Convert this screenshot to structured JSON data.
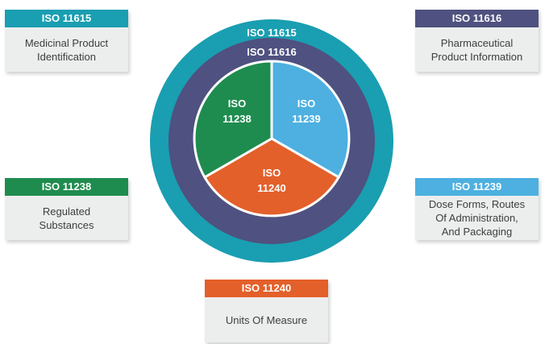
{
  "colors": {
    "outer_ring": "#1a9eb1",
    "middle_ring": "#4f5180",
    "iso_11238": "#1f8c4f",
    "iso_11239": "#4db0e0",
    "iso_11240": "#e3602a",
    "card_body": "#eceeee",
    "card_text": "#3d3d3d"
  },
  "rings": {
    "outer_label": "ISO 11615",
    "middle_label": "ISO 11616"
  },
  "wedges": {
    "iso_11238": {
      "line1": "ISO",
      "line2": "11238"
    },
    "iso_11239": {
      "line1": "ISO",
      "line2": "11239"
    },
    "iso_11240": {
      "line1": "ISO",
      "line2": "11240"
    }
  },
  "cards": {
    "iso_11615": {
      "title": "ISO 11615",
      "text": "Medicinal Product\nIdentification"
    },
    "iso_11616": {
      "title": "ISO 11616",
      "text": "Pharmaceutical\nProduct Information"
    },
    "iso_11238": {
      "title": "ISO 11238",
      "text": "Regulated\nSubstances"
    },
    "iso_11239": {
      "title": "ISO 11239",
      "text": "Dose Forms, Routes\nOf Administration,\nAnd Packaging"
    },
    "iso_11240": {
      "title": "ISO 11240",
      "text": "Units Of Measure"
    }
  }
}
